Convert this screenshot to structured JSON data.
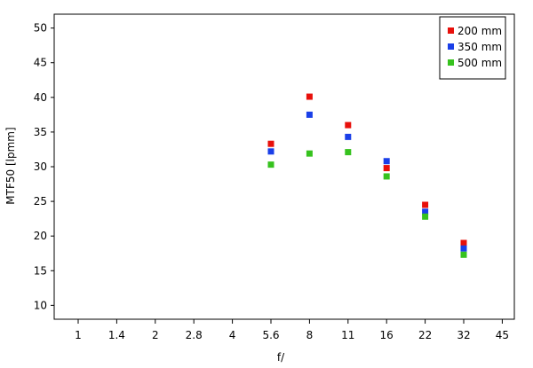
{
  "chart_data": {
    "type": "scatter",
    "xlabel": "f/",
    "ylabel": "MTF50 [lpmm]",
    "x_ticks": [
      "1",
      "1.4",
      "2",
      "2.8",
      "4",
      "5.6",
      "8",
      "11",
      "16",
      "22",
      "32",
      "45"
    ],
    "y_ticks": [
      10,
      15,
      20,
      25,
      30,
      35,
      40,
      45,
      50
    ],
    "ylim": [
      8,
      52
    ],
    "grid": true,
    "legend_position": "top-right",
    "series": [
      {
        "name": "200 mm",
        "color": "#e8100b",
        "points": [
          {
            "x": "5.6",
            "y": 33.3
          },
          {
            "x": "8",
            "y": 40.1
          },
          {
            "x": "11",
            "y": 36.0
          },
          {
            "x": "16",
            "y": 29.8
          },
          {
            "x": "22",
            "y": 24.5
          },
          {
            "x": "32",
            "y": 19.0
          }
        ]
      },
      {
        "name": "350 mm",
        "color": "#1a3fe8",
        "points": [
          {
            "x": "5.6",
            "y": 32.2
          },
          {
            "x": "8",
            "y": 37.5
          },
          {
            "x": "11",
            "y": 34.3
          },
          {
            "x": "16",
            "y": 30.8
          },
          {
            "x": "22",
            "y": 23.5
          },
          {
            "x": "32",
            "y": 18.2
          }
        ]
      },
      {
        "name": "500 mm",
        "color": "#36c21e",
        "points": [
          {
            "x": "5.6",
            "y": 30.3
          },
          {
            "x": "8",
            "y": 31.9
          },
          {
            "x": "11",
            "y": 32.1
          },
          {
            "x": "16",
            "y": 28.6
          },
          {
            "x": "22",
            "y": 22.8
          },
          {
            "x": "32",
            "y": 17.3
          }
        ]
      }
    ]
  }
}
